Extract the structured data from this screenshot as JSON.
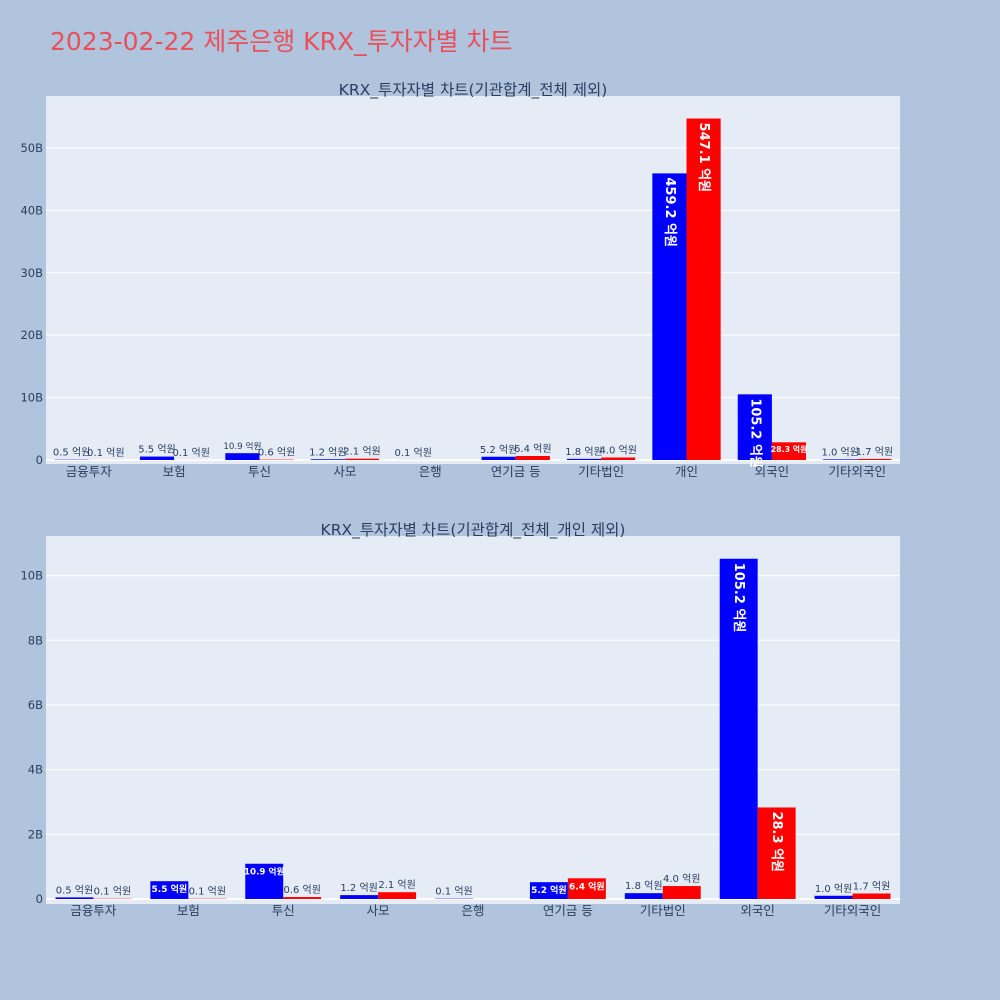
{
  "page": {
    "title": "2023-02-22 제주은행 KRX_투자자별 차트"
  },
  "colors": {
    "background": "#b0c4de",
    "plot_bg": "#e5ecf6",
    "grid": "#ffffff",
    "buy": "#0000ff",
    "sell": "#ff0000",
    "title": "#e8505b",
    "text": "#2a3f5f"
  },
  "chart_data": [
    {
      "type": "bar",
      "title": "KRX_투자자별 차트(기관합계_전체 제외)",
      "categories": [
        "금융투자",
        "보험",
        "투신",
        "사모",
        "은행",
        "연기금 등",
        "기타법인",
        "개인",
        "외국인",
        "기타외국인"
      ],
      "series": [
        {
          "color": "#0000ff",
          "values": [
            0.05,
            0.55,
            1.09,
            0.12,
            0.01,
            0.52,
            0.18,
            45.92,
            10.52,
            0.1
          ],
          "labels": [
            "0.5 억원",
            "5.5 억원",
            "10.9 억원",
            "1.2 억원",
            "0.1 억원",
            "5.2 억원",
            "1.8 억원",
            "459.2 억원",
            "105.2 억원",
            "1.0 억원"
          ]
        },
        {
          "color": "#ff0000",
          "values": [
            0.01,
            0.01,
            0.06,
            0.21,
            0,
            0.64,
            0.4,
            54.71,
            2.83,
            0.17
          ],
          "labels": [
            "0.1 억원",
            "0.1 억원",
            "0.6 억원",
            "2.1 억원",
            "",
            "6.4 억원",
            "4.0 억원",
            "547.1 억원",
            "28.3 억원",
            "1.7 억원"
          ]
        }
      ],
      "ylim": [
        0,
        58
      ],
      "yticks": [
        0,
        10,
        20,
        30,
        40,
        50
      ],
      "ytick_labels": [
        "0",
        "10B",
        "20B",
        "30B",
        "40B",
        "50B"
      ],
      "grid": true
    },
    {
      "type": "bar",
      "title": "KRX_투자자별 차트(기관합계_전체_개인 제외)",
      "categories": [
        "금융투자",
        "보험",
        "투신",
        "사모",
        "은행",
        "연기금 등",
        "기타법인",
        "외국인",
        "기타외국인"
      ],
      "series": [
        {
          "color": "#0000ff",
          "values": [
            0.05,
            0.55,
            1.09,
            0.12,
            0.01,
            0.52,
            0.18,
            10.52,
            0.1
          ],
          "labels": [
            "0.5 억원",
            "5.5 억원",
            "10.9 억원",
            "1.2 억원",
            "0.1 억원",
            "5.2 억원",
            "1.8 억원",
            "105.2 억원",
            "1.0 억원"
          ]
        },
        {
          "color": "#ff0000",
          "values": [
            0.01,
            0.01,
            0.06,
            0.21,
            0,
            0.64,
            0.4,
            2.83,
            0.17
          ],
          "labels": [
            "0.1 억원",
            "0.1 억원",
            "0.6 억원",
            "2.1 억원",
            "",
            "6.4 억원",
            "4.0 억원",
            "28.3 억원",
            "1.7 억원"
          ]
        }
      ],
      "ylim": [
        0,
        11.1
      ],
      "yticks": [
        0,
        2,
        4,
        6,
        8,
        10
      ],
      "ytick_labels": [
        "0",
        "2B",
        "4B",
        "6B",
        "8B",
        "10B"
      ],
      "grid": true
    }
  ]
}
